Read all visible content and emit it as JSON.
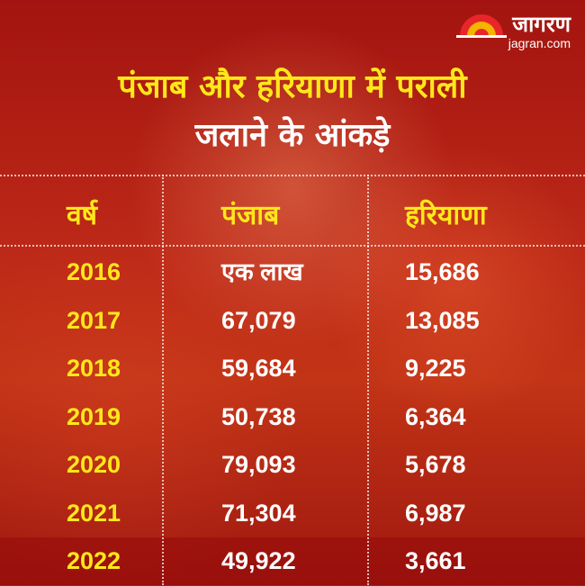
{
  "brand": {
    "name": "जागरण",
    "site": "jagran.com",
    "colors": {
      "sun_red": "#e8262a",
      "sun_yellow": "#f4b400"
    }
  },
  "title": {
    "line1": "पंजाब और हरियाणा में पराली",
    "line2": "जलाने के आंकड़े"
  },
  "colors": {
    "background": "#b51a12",
    "title_highlight": "#ffe81a",
    "text": "#ffffff",
    "divider": "rgba(255,255,255,0.7)"
  },
  "chart_data": {
    "type": "table",
    "columns": [
      "वर्ष",
      "पंजाब",
      "हरियाणा"
    ],
    "rows": [
      [
        "2016",
        "एक लाख",
        "15,686"
      ],
      [
        "2017",
        "67,079",
        "13,085"
      ],
      [
        "2018",
        "59,684",
        "9,225"
      ],
      [
        "2019",
        "50,738",
        "6,364"
      ],
      [
        "2020",
        "79,093",
        "5,678"
      ],
      [
        "2021",
        "71,304",
        "6,987"
      ],
      [
        "2022",
        "49,922",
        "3,661"
      ]
    ]
  }
}
